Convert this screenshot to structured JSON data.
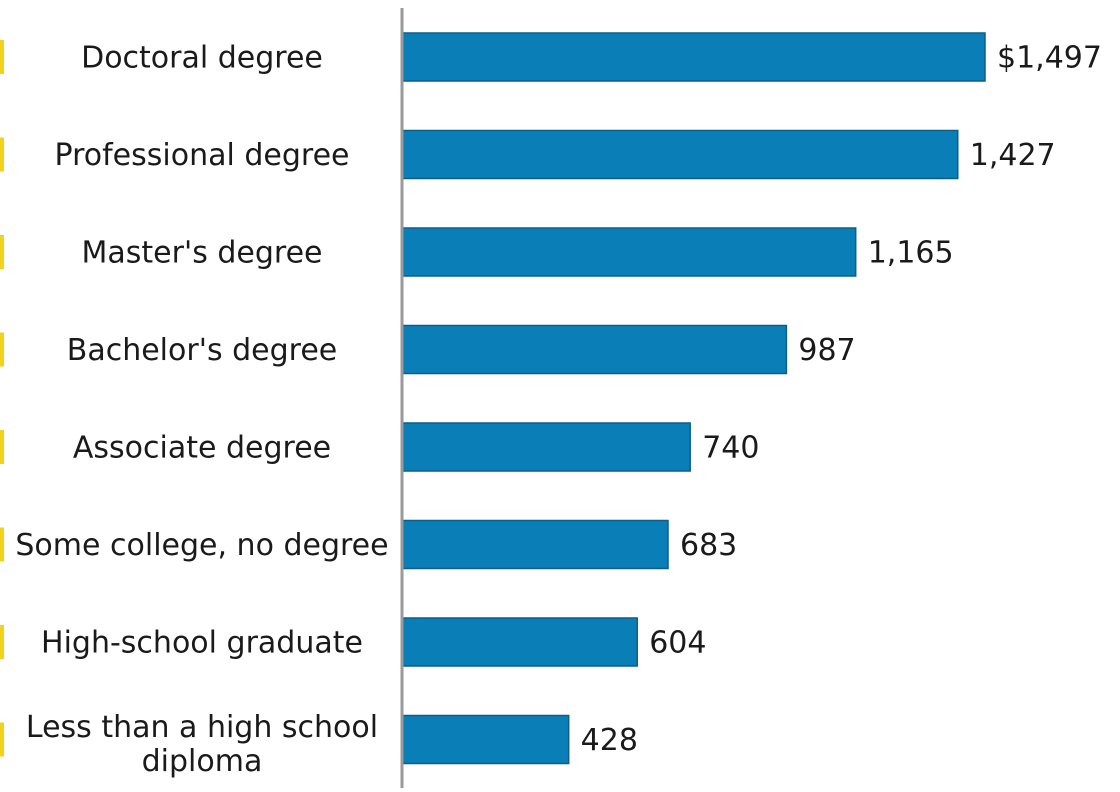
{
  "chart_data": {
    "type": "bar",
    "orientation": "horizontal",
    "categories": [
      "Doctoral degree",
      "Professional degree",
      "Master's degree",
      "Bachelor's degree",
      "Associate degree",
      "Some college, no degree",
      "High-school graduate",
      "Less than a high school diploma"
    ],
    "category_lines": [
      [
        "Doctoral degree"
      ],
      [
        "Professional degree"
      ],
      [
        "Master's degree"
      ],
      [
        "Bachelor's degree"
      ],
      [
        "Associate degree"
      ],
      [
        "Some college, no degree"
      ],
      [
        "High-school graduate"
      ],
      [
        "Less than a high school",
        "diploma"
      ]
    ],
    "values": [
      1497,
      1427,
      1165,
      987,
      740,
      683,
      604,
      428
    ],
    "value_labels": [
      "$1,497",
      "1,427",
      "1,165",
      "987",
      "740",
      "683",
      "604",
      "428"
    ],
    "xlim": [
      0,
      1497
    ],
    "title": "",
    "xlabel": "",
    "ylabel": "",
    "grid": false,
    "legend": "none",
    "colors": {
      "bar": "#0a7eb6",
      "bar_edge": "#0b5f88",
      "axis": "#9a9a9a",
      "text": "#1a1a1a",
      "left_accent": "#f2d21b"
    }
  }
}
